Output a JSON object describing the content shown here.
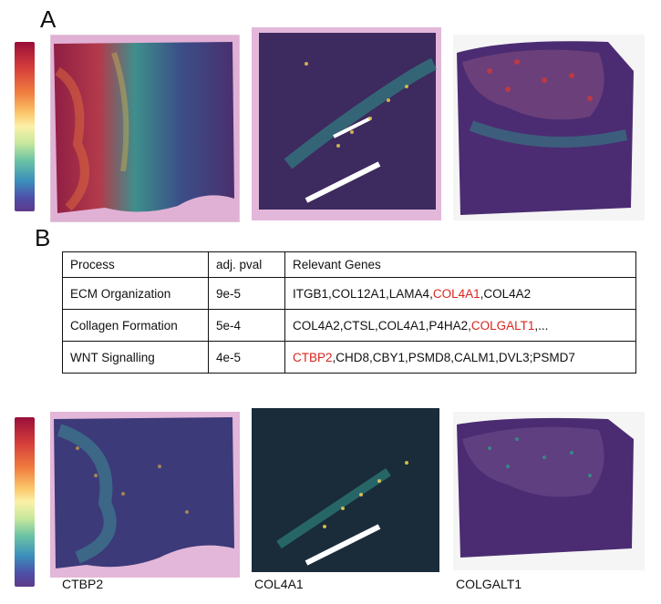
{
  "panel_a": {
    "letter": "A"
  },
  "panel_b": {
    "letter": "B",
    "table": {
      "headers": [
        "Process",
        "adj. pval",
        "Relevant Genes"
      ],
      "rows": [
        {
          "process": "ECM Organization",
          "pval": "9e-5",
          "genes": [
            {
              "text": "ITGB1,COL12A1,LAMA4,",
              "highlight": false
            },
            {
              "text": "COL4A1",
              "highlight": true
            },
            {
              "text": ",COL4A2",
              "highlight": false
            }
          ]
        },
        {
          "process": "Collagen Formation",
          "pval": "5e-4",
          "genes": [
            {
              "text": "COL4A2,CTSL,COL4A1,P4HA2,",
              "highlight": false
            },
            {
              "text": "COLGALT1",
              "highlight": true
            },
            {
              "text": ",...",
              "highlight": false
            }
          ]
        },
        {
          "process": "WNT Signalling",
          "pval": "4e-5",
          "genes": [
            {
              "text": "CTBP2",
              "highlight": true
            },
            {
              "text": ",CHD8,CBY1,PSMD8,CALM1,DVL3;PSMD7",
              "highlight": false
            }
          ]
        }
      ]
    }
  },
  "gene_labels": [
    "CTBP2",
    "COL4A1",
    "COLGALT1"
  ],
  "colors": {
    "highlight": "#d8261f",
    "tissue_base": "#4a2c6e",
    "he_stain": "#c86fb3"
  }
}
